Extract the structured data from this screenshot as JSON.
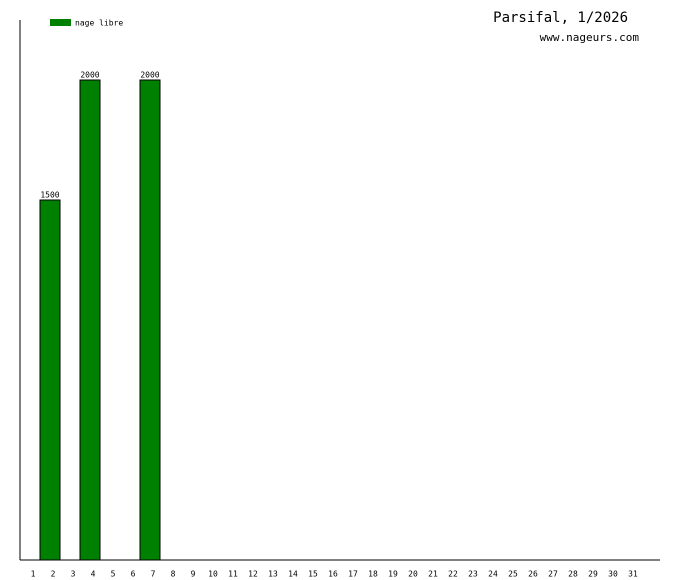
{
  "chart_data": {
    "type": "bar",
    "title": "Parsifal, 1/2026",
    "subtitle": "www.nageurs.com",
    "categories": [
      "1",
      "2",
      "3",
      "4",
      "5",
      "6",
      "7",
      "8",
      "9",
      "10",
      "11",
      "12",
      "13",
      "14",
      "15",
      "16",
      "17",
      "18",
      "19",
      "20",
      "21",
      "22",
      "23",
      "24",
      "25",
      "26",
      "27",
      "28",
      "29",
      "30",
      "31"
    ],
    "series": [
      {
        "name": "nage libre",
        "color": "#008000",
        "values": [
          null,
          1500,
          null,
          2000,
          null,
          null,
          2000,
          null,
          null,
          null,
          null,
          null,
          null,
          null,
          null,
          null,
          null,
          null,
          null,
          null,
          null,
          null,
          null,
          null,
          null,
          null,
          null,
          null,
          null,
          null,
          null
        ]
      }
    ],
    "ylim": [
      0,
      2250
    ],
    "legend": "top-left",
    "show_value_labels": true
  }
}
